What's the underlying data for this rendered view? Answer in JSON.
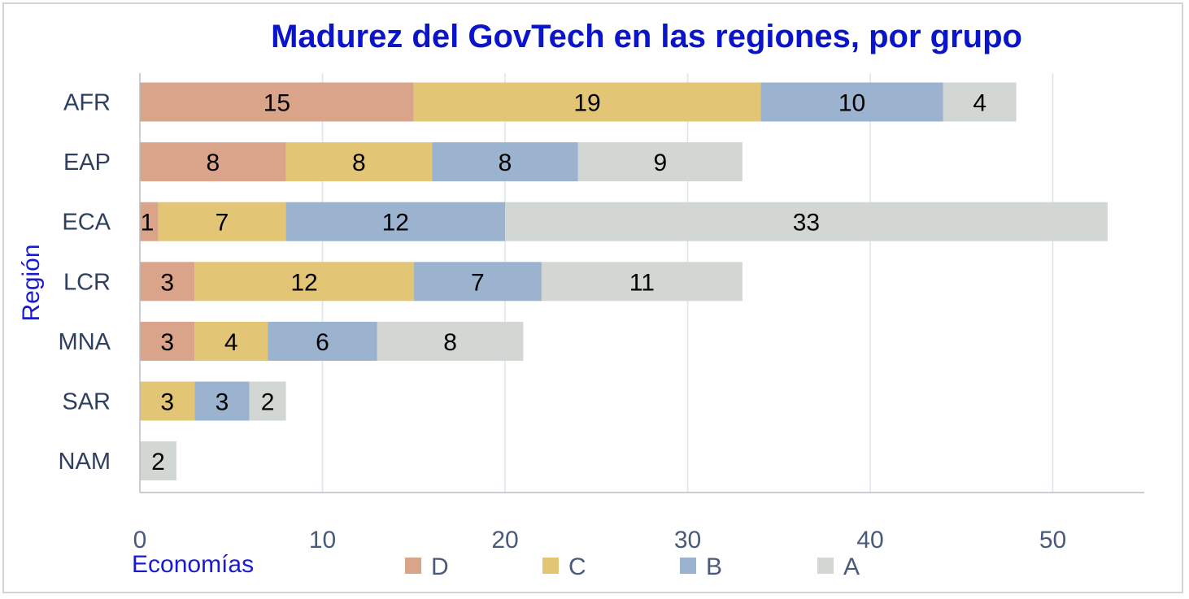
{
  "chart_data": {
    "type": "bar",
    "orientation": "horizontal",
    "stacked": true,
    "title": "Madurez del GovTech en las regiones, por grupo",
    "xlabel": "Economías",
    "ylabel": "Región",
    "categories": [
      "AFR",
      "EAP",
      "ECA",
      "LCR",
      "MNA",
      "SAR",
      "NAM"
    ],
    "series": [
      {
        "name": "D",
        "color": "#d9a48a",
        "values": [
          15,
          8,
          1,
          3,
          3,
          0,
          0
        ]
      },
      {
        "name": "C",
        "color": "#e3c576",
        "values": [
          19,
          8,
          7,
          12,
          4,
          3,
          0
        ]
      },
      {
        "name": "B",
        "color": "#9bb3cf",
        "values": [
          10,
          8,
          12,
          7,
          6,
          3,
          0
        ]
      },
      {
        "name": "A",
        "color": "#d3d7d3",
        "values": [
          4,
          9,
          33,
          11,
          8,
          2,
          2
        ]
      }
    ],
    "xlim": [
      0,
      55
    ],
    "xticks": [
      0,
      10,
      20,
      30,
      40,
      50
    ],
    "grid": true,
    "legend_position": "bottom"
  }
}
